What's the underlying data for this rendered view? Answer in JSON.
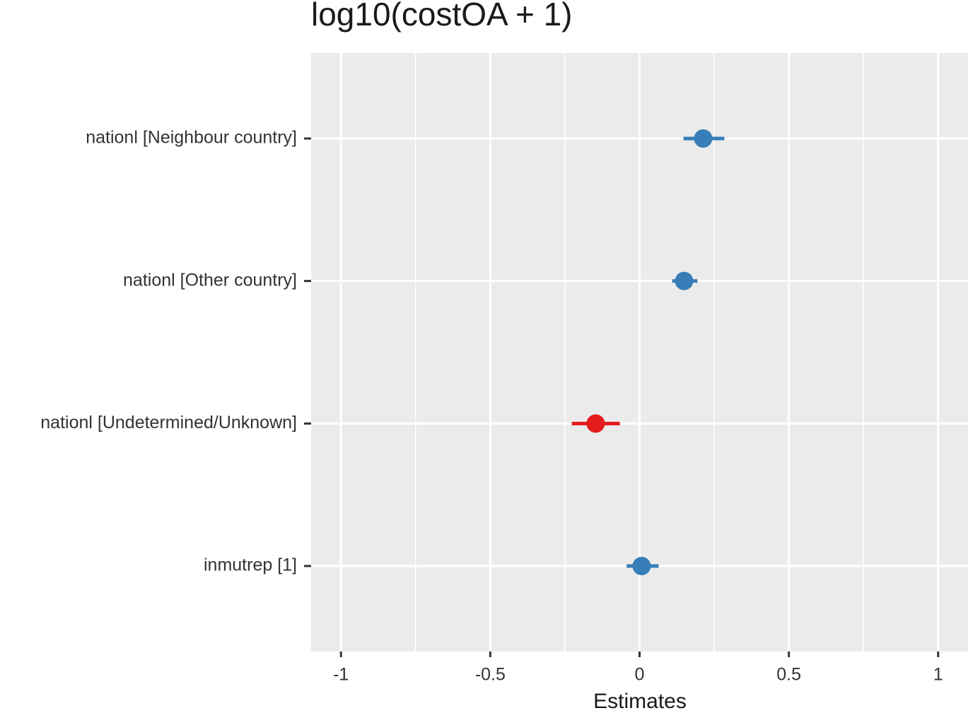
{
  "chart_data": {
    "type": "forest",
    "title": "log10(costOA + 1)",
    "xlabel": "Estimates",
    "categories": [
      "nationl [Neighbour country]",
      "nationl [Other country]",
      "nationl [Undetermined/Unknown]",
      "inmutrep [1]"
    ],
    "values": [
      0.213,
      0.149,
      -0.147,
      0.007
    ],
    "lower": [
      0.147,
      0.109,
      -0.227,
      -0.043
    ],
    "upper": [
      0.284,
      0.194,
      -0.066,
      0.064
    ],
    "colors": [
      "#377eb8",
      "#377eb8",
      "#e41a1c",
      "#377eb8"
    ],
    "xlim": [
      -1.1,
      1.1
    ],
    "xticks": [
      -1,
      -0.5,
      0,
      0.5,
      1
    ],
    "grid": true
  }
}
